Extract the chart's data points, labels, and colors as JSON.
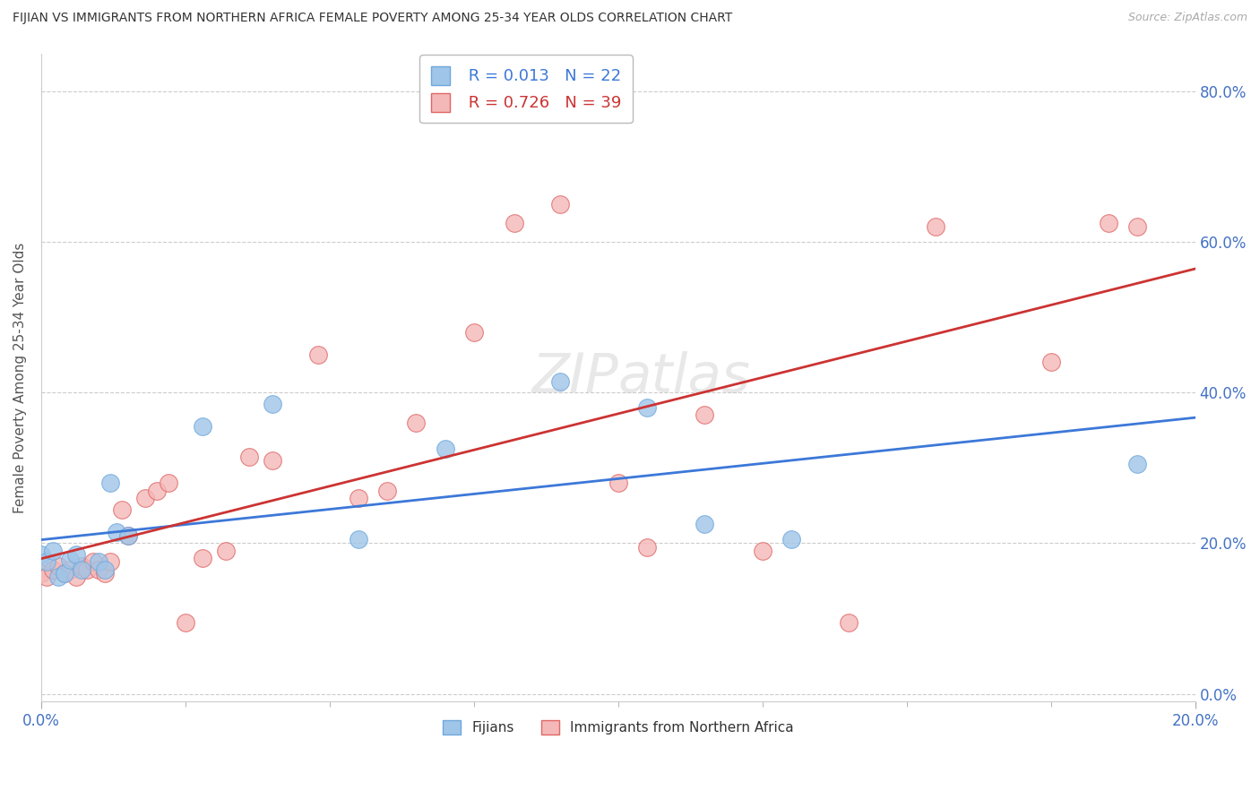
{
  "title": "FIJIAN VS IMMIGRANTS FROM NORTHERN AFRICA FEMALE POVERTY AMONG 25-34 YEAR OLDS CORRELATION CHART",
  "source": "Source: ZipAtlas.com",
  "ylabel": "Female Poverty Among 25-34 Year Olds",
  "xlim": [
    0.0,
    0.2
  ],
  "ylim": [
    -0.01,
    0.85
  ],
  "xtick_vals": [
    0.0,
    0.2
  ],
  "xtick_minor": [
    0.025,
    0.05,
    0.075,
    0.1,
    0.125,
    0.15,
    0.175
  ],
  "ytick_vals": [
    0.0,
    0.2,
    0.4,
    0.6,
    0.8
  ],
  "fijian_color": "#9fc5e8",
  "fijian_edge": "#6fa8dc",
  "immigrant_color": "#f4b8b8",
  "immigrant_edge": "#e06666",
  "fijian_line_color": "#3c78d8",
  "immigrant_line_color": "#cc3333",
  "fijian_R": 0.013,
  "fijian_N": 22,
  "immigrant_R": 0.726,
  "immigrant_N": 39,
  "fijian_x": [
    0.0,
    0.001,
    0.002,
    0.003,
    0.004,
    0.005,
    0.006,
    0.007,
    0.01,
    0.011,
    0.012,
    0.013,
    0.015,
    0.028,
    0.04,
    0.055,
    0.07,
    0.09,
    0.105,
    0.115,
    0.13,
    0.19
  ],
  "fijian_y": [
    0.185,
    0.175,
    0.19,
    0.155,
    0.16,
    0.178,
    0.185,
    0.165,
    0.175,
    0.165,
    0.28,
    0.215,
    0.21,
    0.355,
    0.385,
    0.205,
    0.325,
    0.415,
    0.38,
    0.225,
    0.205,
    0.305
  ],
  "immigrant_x": [
    0.0,
    0.001,
    0.002,
    0.003,
    0.004,
    0.005,
    0.006,
    0.007,
    0.008,
    0.009,
    0.01,
    0.011,
    0.012,
    0.014,
    0.015,
    0.018,
    0.02,
    0.022,
    0.025,
    0.028,
    0.032,
    0.036,
    0.04,
    0.048,
    0.055,
    0.06,
    0.065,
    0.075,
    0.082,
    0.09,
    0.1,
    0.105,
    0.115,
    0.125,
    0.14,
    0.155,
    0.175,
    0.185,
    0.19
  ],
  "immigrant_y": [
    0.16,
    0.155,
    0.165,
    0.17,
    0.16,
    0.165,
    0.155,
    0.17,
    0.165,
    0.175,
    0.165,
    0.16,
    0.175,
    0.245,
    0.21,
    0.26,
    0.27,
    0.28,
    0.095,
    0.18,
    0.19,
    0.315,
    0.31,
    0.45,
    0.26,
    0.27,
    0.36,
    0.48,
    0.625,
    0.65,
    0.28,
    0.195,
    0.37,
    0.19,
    0.095,
    0.62,
    0.44,
    0.625,
    0.62
  ]
}
